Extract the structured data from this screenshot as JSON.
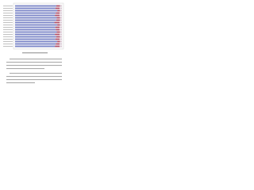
{
  "chart_data": {
    "type": "bar",
    "orientation": "horizontal",
    "stacked": true,
    "categories": [
      null,
      null,
      null,
      null,
      null,
      null,
      null,
      null,
      null,
      null,
      null,
      null,
      null,
      null,
      null,
      null,
      null,
      null
    ],
    "series": [
      {
        "color": "#7b86c8",
        "values": [
          88,
          86,
          90,
          87,
          85,
          89,
          88,
          84,
          90,
          86,
          87,
          89,
          85,
          88,
          86,
          90,
          87,
          85
        ]
      },
      {
        "color": "#b0506a",
        "values": [
          8,
          9,
          6,
          8,
          10,
          7,
          8,
          11,
          6,
          9,
          8,
          7,
          10,
          8,
          9,
          6,
          8,
          10
        ]
      },
      {
        "color": "#d9c6d2",
        "values": [
          4,
          5,
          4,
          5,
          5,
          4,
          4,
          5,
          4,
          5,
          5,
          4,
          5,
          4,
          5,
          4,
          5,
          5
        ]
      }
    ],
    "xlim": [
      0,
      100
    ]
  }
}
